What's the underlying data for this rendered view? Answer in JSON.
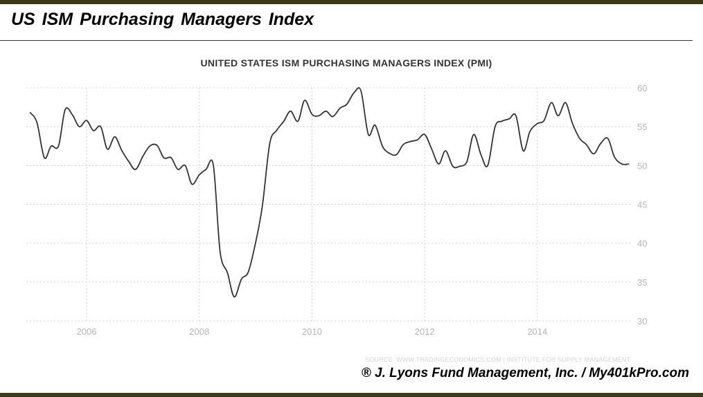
{
  "header": {
    "title": "US ISM Purchasing  Managers  Index"
  },
  "footer": {
    "source": "SOURCE: WWW.TRADINGECONOMICS.COM | INSTITUTE FOR SUPPLY MANAGEMENT",
    "copyright": "® J. Lyons Fund Management, Inc. / My401kPro.com"
  },
  "colors": {
    "frame_bar": "#3b3b1a",
    "line": "#333333",
    "grid": "#d0d0d0",
    "tick_label": "#b5b5b5"
  },
  "chart_data": {
    "type": "line",
    "title": "UNITED STATES ISM PURCHASING MANAGERS INDEX (PMI)",
    "xlabel": "",
    "ylabel": "",
    "xlim": [
      2004.93,
      2015.65
    ],
    "ylim": [
      30,
      60
    ],
    "x_ticks": [
      2006,
      2008,
      2010,
      2012,
      2014
    ],
    "y_ticks": [
      30,
      35,
      40,
      45,
      50,
      55,
      60
    ],
    "grid": true,
    "legend": "none",
    "series": [
      {
        "x": [
          2005.0,
          2005.12,
          2005.25,
          2005.37,
          2005.5,
          2005.62,
          2005.75,
          2005.87,
          2006.0,
          2006.12,
          2006.25,
          2006.37,
          2006.5,
          2006.62,
          2006.75,
          2006.87,
          2007.0,
          2007.12,
          2007.25,
          2007.37,
          2007.5,
          2007.62,
          2007.75,
          2007.87,
          2008.0,
          2008.12,
          2008.25,
          2008.37,
          2008.5,
          2008.62,
          2008.75,
          2008.87,
          2009.0,
          2009.12,
          2009.25,
          2009.37,
          2009.5,
          2009.62,
          2009.75,
          2009.87,
          2010.0,
          2010.12,
          2010.25,
          2010.37,
          2010.5,
          2010.62,
          2010.75,
          2010.87,
          2011.0,
          2011.12,
          2011.25,
          2011.37,
          2011.5,
          2011.62,
          2011.75,
          2011.87,
          2012.0,
          2012.12,
          2012.25,
          2012.37,
          2012.5,
          2012.62,
          2012.75,
          2012.87,
          2013.0,
          2013.12,
          2013.25,
          2013.37,
          2013.5,
          2013.62,
          2013.75,
          2013.87,
          2014.0,
          2014.12,
          2014.25,
          2014.37,
          2014.5,
          2014.62,
          2014.75,
          2014.87,
          2015.0,
          2015.12,
          2015.25,
          2015.37,
          2015.5,
          2015.62
        ],
        "y": [
          56.8,
          55.5,
          51.0,
          52.5,
          52.5,
          57.2,
          56.5,
          55.0,
          55.8,
          54.5,
          55.0,
          52.1,
          53.7,
          52.0,
          50.5,
          49.5,
          51.2,
          52.5,
          52.6,
          51.0,
          51.0,
          49.5,
          50.0,
          47.6,
          48.8,
          49.5,
          50.0,
          38.9,
          36.2,
          33.1,
          35.4,
          36.3,
          40.1,
          44.8,
          52.8,
          54.5,
          55.7,
          57.0,
          55.7,
          58.4,
          56.6,
          56.4,
          57.0,
          56.3,
          57.4,
          57.9,
          59.4,
          59.6,
          54.0,
          55.2,
          52.5,
          51.6,
          51.4,
          52.7,
          53.1,
          53.3,
          54.0,
          52.2,
          50.2,
          51.9,
          49.9,
          49.9,
          50.5,
          54.0,
          51.4,
          50.0,
          55.0,
          55.7,
          56.0,
          56.4,
          51.9,
          54.4,
          55.4,
          55.8,
          58.1,
          56.4,
          58.1,
          55.5,
          53.5,
          52.7,
          51.5,
          52.8,
          53.5,
          51.1,
          50.2,
          50.2
        ]
      }
    ]
  }
}
